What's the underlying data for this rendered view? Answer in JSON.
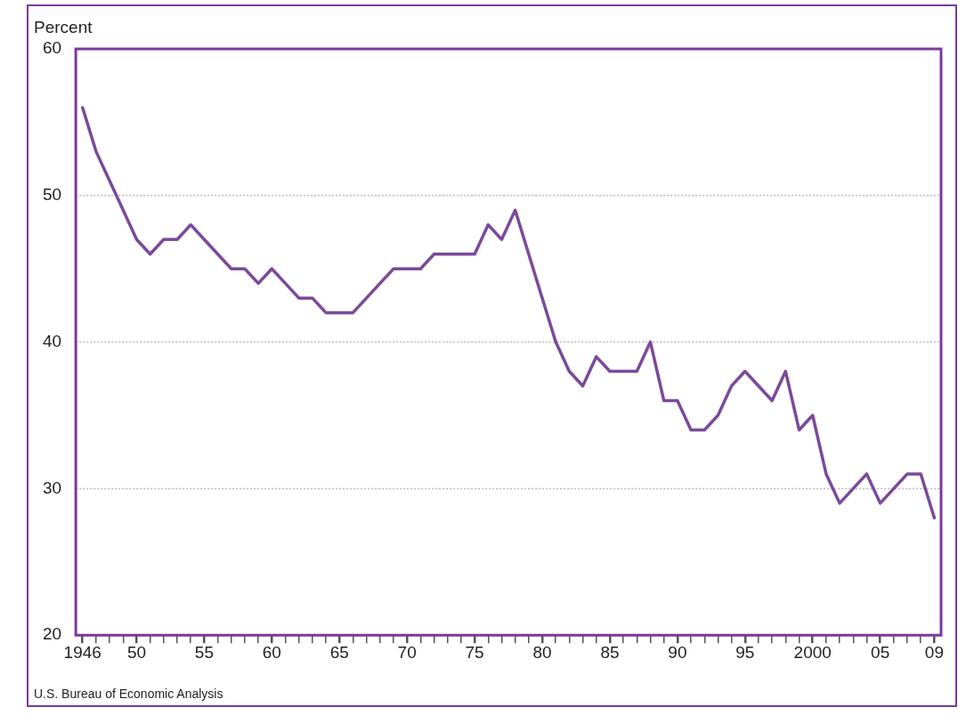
{
  "chart_data": {
    "type": "line",
    "ylabel": "Percent",
    "annotations": [
      "U.S. Bureau of Economic Analysis"
    ],
    "x": [
      1946,
      1947,
      1948,
      1949,
      1950,
      1951,
      1952,
      1953,
      1954,
      1955,
      1956,
      1957,
      1958,
      1959,
      1960,
      1961,
      1962,
      1963,
      1964,
      1965,
      1966,
      1967,
      1968,
      1969,
      1970,
      1971,
      1972,
      1973,
      1974,
      1975,
      1976,
      1977,
      1978,
      1979,
      1980,
      1981,
      1982,
      1983,
      1984,
      1985,
      1986,
      1987,
      1988,
      1989,
      1990,
      1991,
      1992,
      1993,
      1994,
      1995,
      1996,
      1997,
      1998,
      1999,
      2000,
      2001,
      2002,
      2003,
      2004,
      2005,
      2006,
      2007,
      2008,
      2009
    ],
    "series": [
      {
        "color": "#7a4a9a",
        "values": [
          56,
          53,
          51,
          49,
          47,
          46,
          47,
          47,
          48,
          47,
          46,
          45,
          45,
          44,
          45,
          44,
          43,
          43,
          42,
          42,
          42,
          43,
          44,
          45,
          45,
          45,
          46,
          46,
          46,
          46,
          48,
          47,
          49,
          46,
          43,
          40,
          38,
          37,
          39,
          38,
          38,
          38,
          40,
          36,
          36,
          34,
          34,
          35,
          37,
          38,
          37,
          36,
          38,
          34,
          35,
          31,
          29,
          30,
          31,
          29,
          30,
          31,
          31,
          28
        ]
      }
    ],
    "xlim": [
      1945.5,
      2009.5
    ],
    "xticks": [
      {
        "value": 1946,
        "label": "1946"
      },
      {
        "value": 1947,
        "label": null
      },
      {
        "value": 1948,
        "label": null
      },
      {
        "value": 1949,
        "label": null
      },
      {
        "value": 1950,
        "label": "50"
      },
      {
        "value": 1951,
        "label": null
      },
      {
        "value": 1952,
        "label": null
      },
      {
        "value": 1953,
        "label": null
      },
      {
        "value": 1954,
        "label": null
      },
      {
        "value": 1955,
        "label": "55"
      },
      {
        "value": 1956,
        "label": null
      },
      {
        "value": 1957,
        "label": null
      },
      {
        "value": 1958,
        "label": null
      },
      {
        "value": 1959,
        "label": null
      },
      {
        "value": 1960,
        "label": "60"
      },
      {
        "value": 1961,
        "label": null
      },
      {
        "value": 1962,
        "label": null
      },
      {
        "value": 1963,
        "label": null
      },
      {
        "value": 1964,
        "label": null
      },
      {
        "value": 1965,
        "label": "65"
      },
      {
        "value": 1966,
        "label": null
      },
      {
        "value": 1967,
        "label": null
      },
      {
        "value": 1968,
        "label": null
      },
      {
        "value": 1969,
        "label": null
      },
      {
        "value": 1970,
        "label": "70"
      },
      {
        "value": 1971,
        "label": null
      },
      {
        "value": 1972,
        "label": null
      },
      {
        "value": 1973,
        "label": null
      },
      {
        "value": 1974,
        "label": null
      },
      {
        "value": 1975,
        "label": "75"
      },
      {
        "value": 1976,
        "label": null
      },
      {
        "value": 1977,
        "label": null
      },
      {
        "value": 1978,
        "label": null
      },
      {
        "value": 1979,
        "label": null
      },
      {
        "value": 1980,
        "label": "80"
      },
      {
        "value": 1981,
        "label": null
      },
      {
        "value": 1982,
        "label": null
      },
      {
        "value": 1983,
        "label": null
      },
      {
        "value": 1984,
        "label": null
      },
      {
        "value": 1985,
        "label": "85"
      },
      {
        "value": 1986,
        "label": null
      },
      {
        "value": 1987,
        "label": null
      },
      {
        "value": 1988,
        "label": null
      },
      {
        "value": 1989,
        "label": null
      },
      {
        "value": 1990,
        "label": "90"
      },
      {
        "value": 1991,
        "label": null
      },
      {
        "value": 1992,
        "label": null
      },
      {
        "value": 1993,
        "label": null
      },
      {
        "value": 1994,
        "label": null
      },
      {
        "value": 1995,
        "label": "95"
      },
      {
        "value": 1996,
        "label": null
      },
      {
        "value": 1997,
        "label": null
      },
      {
        "value": 1998,
        "label": null
      },
      {
        "value": 1999,
        "label": null
      },
      {
        "value": 2000,
        "label": "2000"
      },
      {
        "value": 2001,
        "label": null
      },
      {
        "value": 2002,
        "label": null
      },
      {
        "value": 2003,
        "label": null
      },
      {
        "value": 2004,
        "label": null
      },
      {
        "value": 2005,
        "label": "05"
      },
      {
        "value": 2006,
        "label": null
      },
      {
        "value": 2007,
        "label": null
      },
      {
        "value": 2008,
        "label": null
      },
      {
        "value": 2009,
        "label": "09"
      }
    ],
    "ylim": [
      20,
      60
    ],
    "yticks": [
      20,
      30,
      40,
      50,
      60
    ],
    "grid": "y",
    "legend": false,
    "marker": "none",
    "line_style": "solid"
  }
}
